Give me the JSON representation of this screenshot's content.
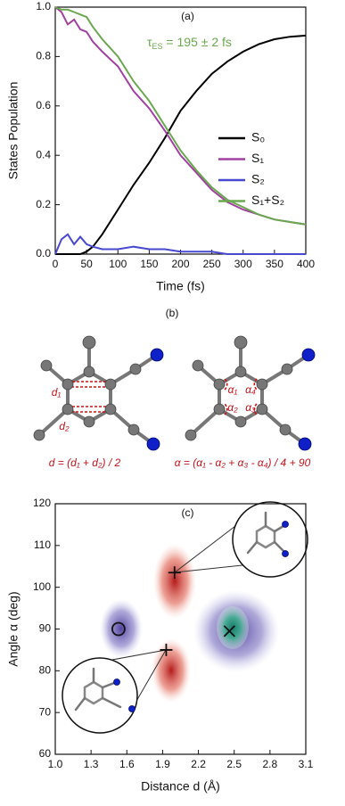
{
  "chart_data": [
    {
      "type": "line",
      "title": "(a)",
      "xlabel": "Time (fs)",
      "ylabel": "States Population",
      "annotation": {
        "parts": [
          "τ",
          "ES",
          " = 195 ± 2 fs"
        ],
        "color": "#6aa84f"
      },
      "x": [
        0,
        10,
        20,
        30,
        40,
        50,
        60,
        75,
        100,
        125,
        150,
        175,
        200,
        225,
        250,
        275,
        300,
        325,
        350,
        375,
        400
      ],
      "series": [
        {
          "name": "S₀",
          "color": "#000000",
          "values": [
            0,
            0,
            0,
            0,
            0,
            0.01,
            0.03,
            0.08,
            0.18,
            0.28,
            0.37,
            0.47,
            0.58,
            0.66,
            0.73,
            0.78,
            0.82,
            0.85,
            0.87,
            0.88,
            0.885
          ]
        },
        {
          "name": "S₁",
          "color": "#a040a0",
          "values": [
            1.0,
            0.98,
            0.93,
            0.95,
            0.91,
            0.9,
            0.86,
            0.82,
            0.76,
            0.66,
            0.59,
            0.5,
            0.4,
            0.33,
            0.26,
            0.21,
            0.18,
            0.16,
            0.14,
            0.13,
            0.12
          ]
        },
        {
          "name": "S₂",
          "color": "#4848d0",
          "values": [
            0,
            0.06,
            0.08,
            0.04,
            0.07,
            0.04,
            0.03,
            0.02,
            0.02,
            0.03,
            0.02,
            0.02,
            0.01,
            0.01,
            0.01,
            0,
            0,
            0,
            0,
            0,
            0
          ]
        },
        {
          "name": "S₁+S₂",
          "color": "#6aa84f",
          "values": [
            1.0,
            0.99,
            0.99,
            0.98,
            0.97,
            0.96,
            0.92,
            0.87,
            0.8,
            0.7,
            0.62,
            0.52,
            0.42,
            0.34,
            0.27,
            0.22,
            0.19,
            0.16,
            0.14,
            0.13,
            0.12
          ]
        }
      ],
      "xlim": [
        0,
        400
      ],
      "xticks": [
        0,
        50,
        100,
        150,
        200,
        250,
        300,
        350,
        400
      ],
      "ylim": [
        0,
        1
      ],
      "yticks": [
        {
          "value": 0,
          "label": "0.0"
        },
        0.2,
        0.4,
        0.6,
        0.8,
        {
          "value": 1,
          "label": "1.0"
        }
      ],
      "legend": "right"
    },
    {
      "type": "scatter",
      "title": "(c)",
      "xlabel": "Distance d (Å)",
      "ylabel": "Angle α (deg)",
      "markers": [
        {
          "shape": "circle",
          "x": 1.53,
          "y": 90
        },
        {
          "shape": "cross",
          "x": 2.46,
          "y": 89.5
        },
        {
          "shape": "plus",
          "x": 1.93,
          "y": 85
        },
        {
          "shape": "plus",
          "x": 2.0,
          "y": 103.5
        }
      ],
      "xlim": [
        1,
        3.1
      ],
      "xticks": [
        {
          "value": 1,
          "label": "1.0"
        },
        1.3,
        1.6,
        1.9,
        2.2,
        2.5,
        2.8,
        3.1
      ],
      "ylim": [
        60,
        120
      ],
      "yticks": [
        60,
        70,
        80,
        90,
        100,
        110,
        120
      ]
    }
  ],
  "panel_b": {
    "label": "(b)",
    "d_labels": [
      "d₁",
      "d₂"
    ],
    "alpha_labels": [
      "α₁",
      "α₂",
      "α₃",
      "α₄"
    ],
    "equations": [
      "d = (d₁ + d₂) / 2",
      "α = (α₁ - α₂ + α₃ - α₄) / 4 + 90"
    ]
  }
}
